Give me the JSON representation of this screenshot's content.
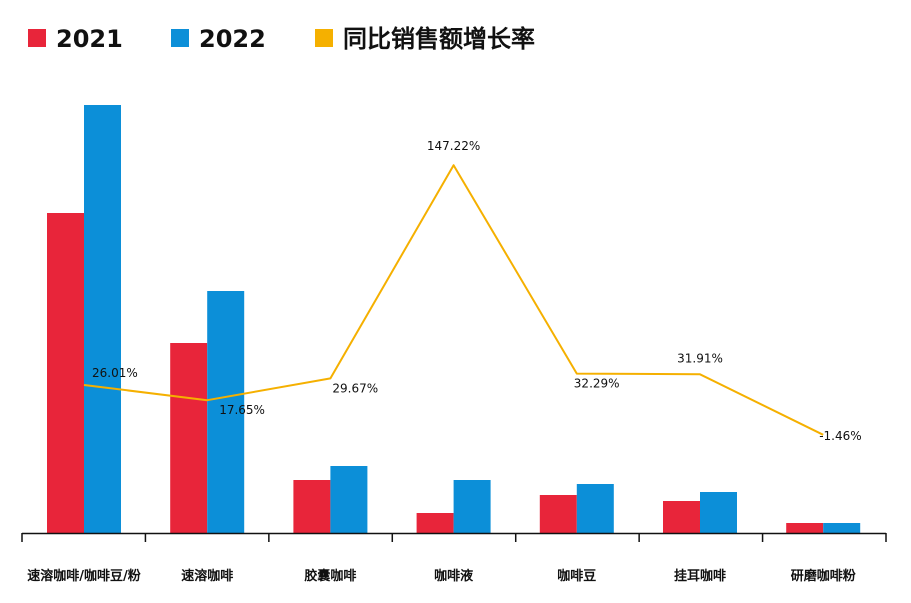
{
  "chart_data": {
    "type": "bar",
    "categories": [
      "速溶咖啡/咖啡豆/粉",
      "速溶咖啡",
      "胶囊咖啡",
      "咖啡液",
      "咖啡豆",
      "挂耳咖啡",
      "研磨咖啡粉"
    ],
    "series": [
      {
        "name": "2021",
        "color": "#e8253a",
        "values": [
          320,
          190,
          53,
          20,
          38,
          32,
          10
        ]
      },
      {
        "name": "2022",
        "color": "#0c8fd8",
        "values": [
          428,
          242,
          67,
          53,
          49,
          41,
          10
        ]
      }
    ],
    "line": {
      "name": "同比销售额增长率",
      "color": "#f5b000",
      "values": [
        26.01,
        17.65,
        29.67,
        147.22,
        32.29,
        31.91,
        -1.46
      ],
      "labels": [
        "26.01%",
        "17.65%",
        "29.67%",
        "147.22%",
        "32.29%",
        "31.91%",
        "-1.46%"
      ]
    },
    "legend_position": "top-left",
    "grid": false
  }
}
